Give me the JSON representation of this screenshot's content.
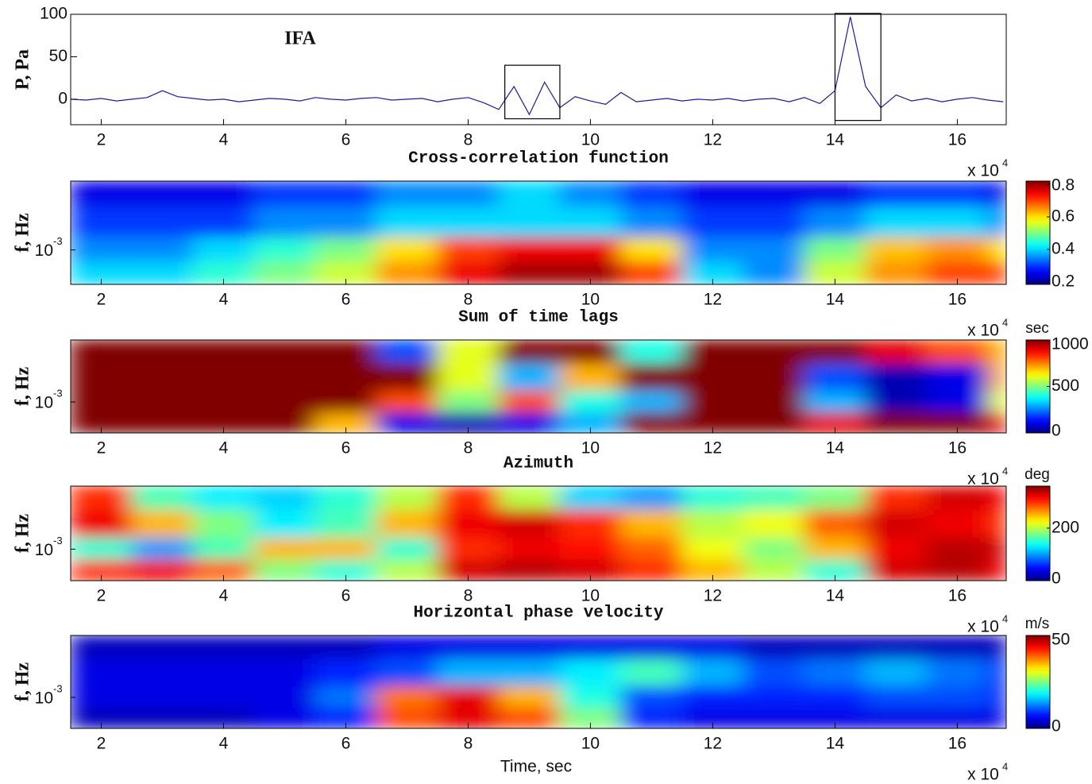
{
  "chart_data": [
    {
      "type": "line",
      "annotation": "IFA",
      "y_label": "P, Pa",
      "x": [
        1.5,
        1.75,
        2,
        2.25,
        2.5,
        2.75,
        3,
        3.25,
        3.5,
        3.75,
        4,
        4.25,
        4.5,
        4.75,
        5,
        5.25,
        5.5,
        5.75,
        6,
        6.25,
        6.5,
        6.75,
        7,
        7.25,
        7.5,
        7.75,
        8,
        8.25,
        8.5,
        8.75,
        9,
        9.25,
        9.5,
        9.75,
        10,
        10.25,
        10.5,
        10.75,
        11,
        11.25,
        11.5,
        11.75,
        12,
        12.25,
        12.5,
        12.75,
        13,
        13.25,
        13.5,
        13.75,
        14,
        14.25,
        14.5,
        14.75,
        15,
        15.25,
        15.5,
        15.75,
        16,
        16.25,
        16.5,
        16.75
      ],
      "series": [
        {
          "color": "#1a1aa0",
          "values": [
            0,
            -1,
            1,
            -2,
            0,
            2,
            10,
            3,
            1,
            -1,
            0,
            -3,
            -1,
            1,
            0,
            -2,
            2,
            0,
            -1,
            1,
            2,
            -1,
            0,
            1,
            -3,
            0,
            2,
            -4,
            -12,
            15,
            -18,
            20,
            -10,
            3,
            -2,
            -6,
            8,
            -3,
            -1,
            1,
            -2,
            0,
            -1,
            1,
            -2,
            0,
            1,
            -3,
            2,
            -5,
            10,
            97,
            15,
            -10,
            5,
            -2,
            1,
            -3,
            0,
            2,
            -1,
            -3
          ]
        }
      ],
      "boxes": [
        {
          "x": [
            8.6,
            9.5
          ],
          "y": [
            -23,
            40
          ]
        },
        {
          "x": [
            14,
            14.75
          ],
          "y": [
            -25,
            101
          ]
        }
      ],
      "xlim": [
        1.5,
        16.8
      ],
      "xticks": [
        2,
        4,
        6,
        8,
        10,
        12,
        14,
        16
      ],
      "ylim": [
        -30,
        100
      ],
      "yticks": [
        0,
        50,
        100
      ],
      "x_multiplier": {
        "label": "x 10",
        "exponent": "4"
      }
    },
    {
      "type": "heatmap",
      "title": "Cross-correlation function",
      "y_label": "f, Hz",
      "colormap": "jet",
      "log_y": true,
      "x_bins": [
        1.5,
        2.5,
        3.5,
        4.5,
        5.5,
        6.5,
        7.5,
        8.5,
        9.5,
        10.5,
        11.5,
        12.5,
        13.5,
        14.5,
        15.5,
        16.5,
        16.8
      ],
      "y_bins": [
        0.0005,
        0.0008,
        0.0013,
        0.0024,
        0.004
      ],
      "z": [
        [
          0.4,
          0.4,
          0.45,
          0.5,
          0.55,
          0.65,
          0.75,
          0.8,
          0.8,
          0.7,
          0.4,
          0.35,
          0.55,
          0.65,
          0.7,
          0.7
        ],
        [
          0.35,
          0.35,
          0.4,
          0.45,
          0.5,
          0.6,
          0.7,
          0.75,
          0.75,
          0.6,
          0.35,
          0.35,
          0.5,
          0.62,
          0.65,
          0.6
        ],
        [
          0.3,
          0.3,
          0.3,
          0.35,
          0.35,
          0.4,
          0.4,
          0.4,
          0.4,
          0.35,
          0.3,
          0.3,
          0.35,
          0.4,
          0.4,
          0.35
        ],
        [
          0.25,
          0.25,
          0.25,
          0.3,
          0.3,
          0.35,
          0.35,
          0.4,
          0.35,
          0.3,
          0.25,
          0.25,
          0.25,
          0.3,
          0.3,
          0.25
        ]
      ],
      "xlim": [
        1.5,
        16.8
      ],
      "xticks": [
        2,
        4,
        6,
        8,
        10,
        12,
        14,
        16
      ],
      "ylim": [
        0.0005,
        0.004
      ],
      "yticks": [
        {
          "value": 0.001,
          "label": "10",
          "exponent": "-3"
        }
      ],
      "colorbar": {
        "clim": [
          0.185,
          0.82
        ],
        "ticks": [
          0.2,
          0.4,
          0.6,
          0.8
        ]
      },
      "x_multiplier": {
        "label": "x 10",
        "exponent": "4"
      }
    },
    {
      "type": "heatmap",
      "title": "Sum of time lags",
      "y_label": "f, Hz",
      "colormap": "jet",
      "log_y": true,
      "x_bins": [
        1.5,
        2.5,
        3.5,
        4.5,
        5.5,
        6.5,
        7.5,
        8.5,
        9.5,
        10.5,
        11.5,
        12.5,
        13.5,
        14.5,
        15.5,
        16.5,
        16.8
      ],
      "y_bins": [
        0.0005,
        0.0008,
        0.0013,
        0.0024,
        0.004
      ],
      "z": [
        [
          1000,
          1000,
          1000,
          1000,
          700,
          100,
          50,
          100,
          300,
          1000,
          1000,
          1000,
          900,
          1000,
          1000,
          900
        ],
        [
          1000,
          1000,
          1000,
          1000,
          1000,
          800,
          500,
          800,
          400,
          300,
          1000,
          1000,
          300,
          50,
          100,
          600
        ],
        [
          1000,
          1000,
          1000,
          1000,
          1000,
          1000,
          600,
          300,
          700,
          1000,
          1000,
          1000,
          200,
          50,
          100,
          700
        ],
        [
          1000,
          1000,
          1000,
          1000,
          1000,
          200,
          600,
          1000,
          1000,
          400,
          1000,
          1000,
          1000,
          900,
          800,
          700
        ]
      ],
      "xlim": [
        1.5,
        16.8
      ],
      "xticks": [
        2,
        4,
        6,
        8,
        10,
        12,
        14,
        16
      ],
      "ylim": [
        0.0005,
        0.004
      ],
      "yticks": [
        {
          "value": 0.001,
          "label": "10",
          "exponent": "-3"
        }
      ],
      "colorbar": {
        "clim": [
          0,
          1000
        ],
        "ticks": [
          0,
          500,
          1000
        ],
        "unit": "sec"
      },
      "x_multiplier": {
        "label": "x 10",
        "exponent": "4"
      }
    },
    {
      "type": "heatmap",
      "title": "Azimuth",
      "y_label": "f, Hz",
      "colormap": "jet",
      "log_y": true,
      "x_bins": [
        1.5,
        2.5,
        3.5,
        4.5,
        5.5,
        6.5,
        7.5,
        8.5,
        9.5,
        10.5,
        11.5,
        12.5,
        13.5,
        14.5,
        15.5,
        16.5,
        16.8
      ],
      "y_bins": [
        0.0005,
        0.0008,
        0.0013,
        0.0024,
        0.004
      ],
      "z": [
        [
          300,
          320,
          280,
          180,
          150,
          200,
          330,
          340,
          330,
          300,
          250,
          200,
          150,
          330,
          340,
          320
        ],
        [
          150,
          100,
          160,
          250,
          250,
          150,
          300,
          320,
          310,
          280,
          220,
          180,
          250,
          320,
          340,
          330
        ],
        [
          320,
          250,
          180,
          130,
          160,
          250,
          320,
          330,
          300,
          250,
          200,
          220,
          280,
          330,
          320,
          300
        ],
        [
          300,
          160,
          130,
          120,
          150,
          200,
          300,
          200,
          120,
          100,
          150,
          160,
          180,
          300,
          330,
          320
        ]
      ],
      "xlim": [
        1.5,
        16.8
      ],
      "xticks": [
        2,
        4,
        6,
        8,
        10,
        12,
        14,
        16
      ],
      "ylim": [
        0.0005,
        0.004
      ],
      "yticks": [
        {
          "value": 0.001,
          "label": "10",
          "exponent": "-3"
        }
      ],
      "colorbar": {
        "clim": [
          0,
          360
        ],
        "ticks": [
          0,
          200
        ],
        "unit": "deg"
      },
      "x_multiplier": {
        "label": "x 10",
        "exponent": "4"
      }
    },
    {
      "type": "heatmap",
      "title": "Horizontal phase velocity",
      "y_label": "f, Hz",
      "x_label": "Time, sec",
      "colormap": "jet",
      "log_y": true,
      "x_bins": [
        1.5,
        2.5,
        3.5,
        4.5,
        5.5,
        6.5,
        7.5,
        8.5,
        9.5,
        10.5,
        11.5,
        12.5,
        13.5,
        14.5,
        15.5,
        16.5,
        16.8
      ],
      "y_bins": [
        0.0005,
        0.0008,
        0.0013,
        0.0024,
        0.004
      ],
      "z": [
        [
          3,
          3,
          3,
          5,
          8,
          40,
          45,
          40,
          25,
          8,
          5,
          5,
          5,
          5,
          5,
          5
        ],
        [
          5,
          5,
          5,
          5,
          12,
          38,
          45,
          35,
          20,
          10,
          8,
          8,
          8,
          10,
          10,
          8
        ],
        [
          5,
          5,
          5,
          5,
          8,
          10,
          15,
          15,
          18,
          22,
          15,
          10,
          12,
          15,
          12,
          8
        ],
        [
          3,
          3,
          3,
          3,
          3,
          5,
          5,
          5,
          5,
          5,
          5,
          3,
          3,
          3,
          3,
          3
        ]
      ],
      "xlim": [
        1.5,
        16.8
      ],
      "xticks": [
        2,
        4,
        6,
        8,
        10,
        12,
        14,
        16
      ],
      "ylim": [
        0.0005,
        0.004
      ],
      "yticks": [
        {
          "value": 0.001,
          "label": "10",
          "exponent": "-3"
        }
      ],
      "colorbar": {
        "clim": [
          0,
          50
        ],
        "ticks": [
          0,
          50
        ],
        "unit": "m/s"
      },
      "x_multiplier": {
        "label": "x 10",
        "exponent": "4"
      }
    }
  ]
}
